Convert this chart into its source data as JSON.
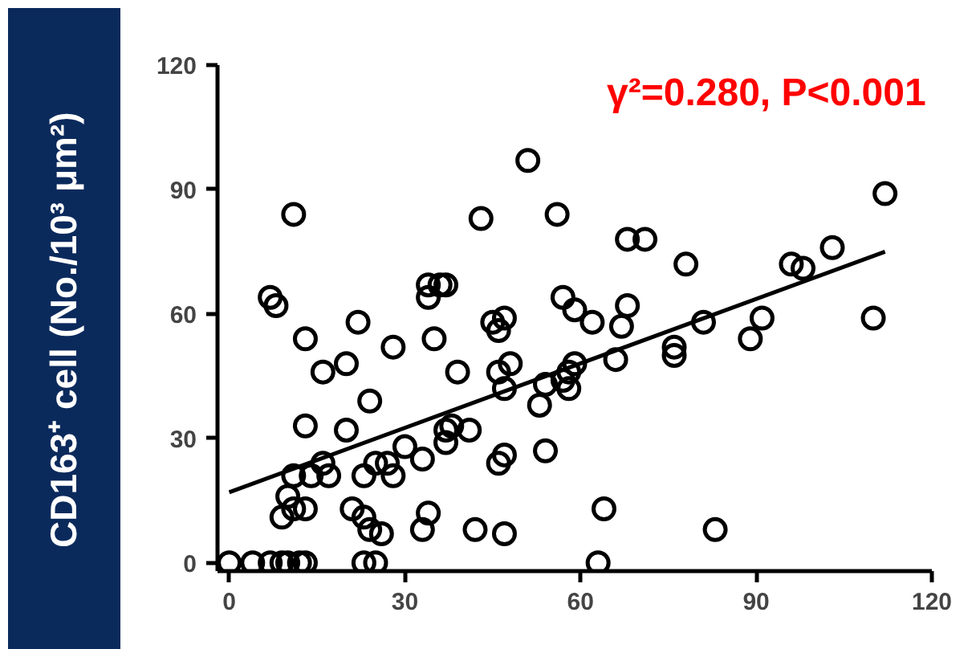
{
  "chart_data": {
    "type": "scatter",
    "ylabel": "CD163⁺ cell (No./10³ μm²)",
    "annotations": [
      "γ²=0.280, P<0.001"
    ],
    "xlim": [
      -2,
      120
    ],
    "ylim": [
      -2,
      120
    ],
    "xticks": [
      0,
      30,
      60,
      90,
      120
    ],
    "yticks": [
      0,
      30,
      60,
      90,
      120
    ],
    "grid": false,
    "series": [
      {
        "marker": "circle",
        "color": "#000000",
        "x": [
          7,
          8,
          11,
          13,
          13,
          16,
          14,
          16,
          17,
          11,
          10,
          9,
          11,
          13,
          20,
          20,
          22,
          24,
          21,
          23,
          24,
          26,
          23,
          25,
          28,
          27,
          28,
          30,
          33,
          34,
          33,
          34,
          34,
          35,
          36,
          37,
          37,
          37,
          38,
          39,
          41,
          42,
          43,
          45,
          46,
          47,
          46,
          47,
          46,
          47,
          47,
          48,
          51,
          53,
          54,
          54,
          56,
          57,
          57,
          58,
          58,
          59,
          59,
          62,
          64,
          63,
          66,
          67,
          68,
          68,
          71,
          76,
          76,
          78,
          81,
          83,
          89,
          91,
          96,
          98,
          103,
          110,
          112,
          0,
          4,
          7,
          9,
          10,
          12,
          13,
          23,
          25
        ],
        "values": [
          64,
          62,
          84,
          54,
          33,
          46,
          21,
          24,
          21,
          21,
          16,
          11,
          13,
          13,
          48,
          32,
          58,
          39,
          13,
          11,
          8,
          7,
          21,
          24,
          52,
          24,
          21,
          28,
          25,
          12,
          8,
          64,
          67,
          54,
          67,
          67,
          32,
          29,
          33,
          46,
          32,
          8,
          83,
          58,
          56,
          59,
          46,
          42,
          24,
          26,
          7,
          48,
          97,
          38,
          43,
          27,
          84,
          64,
          44,
          46,
          42,
          48,
          61,
          58,
          13,
          0,
          49,
          57,
          78,
          62,
          78,
          52,
          50,
          72,
          58,
          8,
          54,
          59,
          72,
          71,
          76,
          59,
          89,
          0,
          0,
          0,
          0,
          0,
          0,
          0,
          0,
          0
        ]
      },
      {
        "type": "line",
        "color": "#000000",
        "x": [
          0,
          112
        ],
        "values": [
          17,
          75
        ]
      }
    ]
  }
}
